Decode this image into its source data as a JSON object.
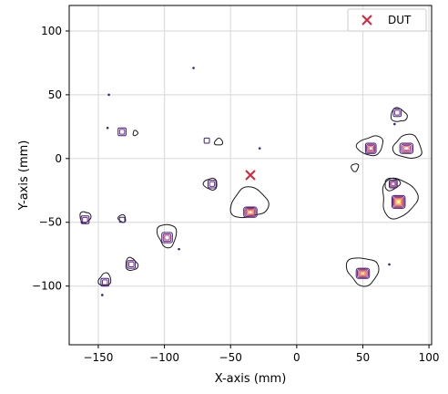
{
  "chart_data": {
    "type": "scatter",
    "title": "",
    "xlabel": "X-axis (mm)",
    "ylabel": "Y-axis (mm)",
    "xlim": [
      -172,
      102
    ],
    "ylim": [
      -146,
      120
    ],
    "xticks": [
      -150,
      -100,
      -50,
      0,
      50,
      100
    ],
    "yticks": [
      -100,
      -50,
      0,
      50,
      100
    ],
    "xtick_labels": [
      "−150",
      "−100",
      "−50",
      "0",
      "50",
      "100"
    ],
    "ytick_labels": [
      "−100",
      "−50",
      "0",
      "50",
      "100"
    ],
    "grid": true,
    "legend": {
      "placement": "top-right",
      "entries": [
        {
          "name": "DUT",
          "marker": "x",
          "color": "#d7263d"
        }
      ]
    },
    "series": [
      {
        "name": "DUT",
        "marker": "x",
        "color": "#d7263d",
        "points": [
          {
            "x": -35,
            "y": -13
          }
        ]
      }
    ],
    "contour_colors": [
      "#1a1a1a",
      "#3b1f7a",
      "#7b2a8b",
      "#b33f7a",
      "#e0645a",
      "#f59b3d",
      "#f7d13d"
    ],
    "hotspots": [
      {
        "x": -35,
        "y": -42,
        "rx": 5,
        "ry": 4,
        "levels": 5
      },
      {
        "x": 77,
        "y": -34,
        "rx": 5,
        "ry": 5,
        "levels": 6
      },
      {
        "x": 50,
        "y": -90,
        "rx": 5,
        "ry": 4,
        "levels": 5
      },
      {
        "x": 56,
        "y": 8,
        "rx": 4,
        "ry": 4,
        "levels": 4
      },
      {
        "x": 83,
        "y": 8,
        "rx": 5,
        "ry": 4,
        "levels": 4
      },
      {
        "x": 76,
        "y": 36,
        "rx": 3,
        "ry": 3,
        "levels": 2
      },
      {
        "x": 73,
        "y": -20,
        "rx": 3,
        "ry": 3,
        "levels": 3
      },
      {
        "x": -98,
        "y": -62,
        "rx": 4,
        "ry": 4,
        "levels": 3
      },
      {
        "x": -64,
        "y": -20,
        "rx": 3,
        "ry": 3,
        "levels": 2
      },
      {
        "x": -145,
        "y": -97,
        "rx": 3,
        "ry": 3,
        "levels": 2
      },
      {
        "x": -132,
        "y": 21,
        "rx": 3,
        "ry": 3,
        "levels": 2
      },
      {
        "x": -160,
        "y": -48,
        "rx": 3,
        "ry": 3,
        "levels": 2
      },
      {
        "x": -125,
        "y": -83,
        "rx": 3,
        "ry": 3,
        "levels": 2
      },
      {
        "x": -132,
        "y": -48,
        "rx": 2,
        "ry": 2,
        "levels": 1
      },
      {
        "x": -68,
        "y": 14,
        "rx": 2,
        "ry": 2,
        "levels": 1
      }
    ],
    "blobs": [
      {
        "x": -36,
        "y": -35,
        "rx": 14,
        "ry": 13
      },
      {
        "x": 77,
        "y": -31,
        "rx": 15,
        "ry": 15
      },
      {
        "x": 50,
        "y": -88,
        "rx": 12,
        "ry": 12
      },
      {
        "x": 56,
        "y": 10,
        "rx": 10,
        "ry": 8
      },
      {
        "x": 84,
        "y": 9,
        "rx": 12,
        "ry": 9
      },
      {
        "x": 77,
        "y": 34,
        "rx": 6,
        "ry": 6
      },
      {
        "x": 72,
        "y": -20,
        "rx": 6,
        "ry": 5
      },
      {
        "x": -98,
        "y": -60,
        "rx": 8,
        "ry": 9
      },
      {
        "x": -65,
        "y": -20,
        "rx": 5,
        "ry": 5
      },
      {
        "x": -145,
        "y": -95,
        "rx": 5,
        "ry": 5
      },
      {
        "x": -125,
        "y": -83,
        "rx": 5,
        "ry": 5
      },
      {
        "x": -160,
        "y": -46,
        "rx": 4,
        "ry": 5
      },
      {
        "x": 44,
        "y": -7,
        "rx": 3,
        "ry": 3
      },
      {
        "x": -132,
        "y": -47,
        "rx": 3,
        "ry": 3
      },
      {
        "x": -59,
        "y": 13,
        "rx": 3,
        "ry": 3
      },
      {
        "x": -122,
        "y": 20,
        "rx": 2,
        "ry": 2
      }
    ],
    "specks": [
      {
        "x": -142,
        "y": 50
      },
      {
        "x": -78,
        "y": 71
      },
      {
        "x": -28,
        "y": 8
      },
      {
        "x": 74,
        "y": 27
      },
      {
        "x": -147,
        "y": -107
      },
      {
        "x": -143,
        "y": 24
      },
      {
        "x": 70,
        "y": -83
      },
      {
        "x": -89,
        "y": -71
      }
    ]
  }
}
